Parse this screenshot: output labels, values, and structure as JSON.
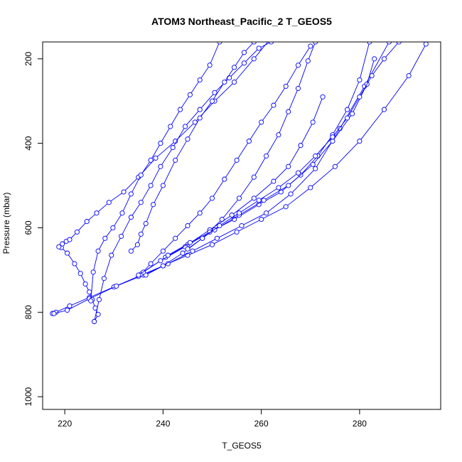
{
  "chart_data": {
    "type": "line",
    "title": "ATOM3 Northeast_Pacific_2 T_GEOS5",
    "xlabel": "T_GEOS5",
    "ylabel": "Pressure (mbar)",
    "xlim": [
      215.5,
      296.5
    ],
    "ylim": [
      1030,
      160
    ],
    "y_reversed": true,
    "x_ticks": [
      220,
      240,
      260,
      280
    ],
    "y_ticks": [
      200,
      400,
      600,
      800,
      1000
    ],
    "grid": false,
    "legend": "none",
    "marker": "open-circle",
    "color": "#0000ff",
    "series": [
      {
        "x": [
          217.5,
          218.2,
          221.0,
          225.0,
          230.0,
          235.0,
          240.0,
          245.0,
          250.0,
          255.0,
          260.0,
          265.0,
          270.0,
          275.0,
          280.0,
          285.0,
          290.0,
          293.5
        ],
        "y": [
          803,
          800,
          785,
          765,
          740,
          715,
          690,
          665,
          640,
          610,
          580,
          550,
          505,
          455,
          395,
          320,
          240,
          165
        ]
      },
      {
        "x": [
          217.8,
          220.5,
          225.0,
          230.5,
          236.0,
          241.0,
          246.0,
          251.0,
          256.0,
          261.0,
          266.0,
          271.0,
          276.0,
          281.0,
          286.0
        ],
        "y": [
          803,
          795,
          768,
          738,
          712,
          685,
          655,
          625,
          595,
          565,
          520,
          460,
          365,
          265,
          160
        ]
      },
      {
        "x": [
          226.0,
          226.8,
          226.2,
          225.6,
          225.0,
          224.2,
          223.2,
          222.0,
          220.5,
          219.3,
          218.8,
          219.5,
          220.3,
          221.0,
          222.5,
          224.5,
          226.5,
          229.0,
          232.0,
          235.0,
          238.5,
          242.5,
          246.5,
          250.5,
          254.5,
          258.5,
          262.0
        ],
        "y": [
          822,
          805,
          790,
          770,
          752,
          733,
          708,
          685,
          660,
          647,
          645,
          638,
          632,
          628,
          610,
          585,
          565,
          540,
          515,
          480,
          435,
          395,
          350,
          300,
          255,
          200,
          150
        ]
      },
      {
        "x": [
          226.0,
          227.0,
          228.0,
          229.5,
          231.5,
          233.5,
          235.5,
          237.5,
          239.5,
          242.0,
          244.5,
          247.5,
          250.5,
          253.5,
          256.5,
          259.5,
          262.0,
          264.5
        ],
        "y": [
          822,
          770,
          720,
          665,
          620,
          575,
          540,
          500,
          455,
          410,
          360,
          320,
          280,
          245,
          210,
          175,
          160,
          150
        ]
      },
      {
        "x": [
          225.3,
          225.8,
          226.8,
          228.2,
          229.8,
          231.7,
          233.5,
          235.5,
          237.5,
          239.5,
          241.5,
          243.5,
          245.5,
          247.5,
          249.5,
          251.5
        ],
        "y": [
          773,
          705,
          655,
          625,
          600,
          565,
          520,
          475,
          440,
          400,
          360,
          320,
          285,
          250,
          215,
          160
        ]
      },
      {
        "x": [
          233.5,
          234.8,
          235.5,
          236.5,
          238.0,
          240.0,
          242.5,
          245.0,
          247.5,
          250.0,
          252.5,
          254.5,
          256.5,
          258.5,
          260.5
        ],
        "y": [
          655,
          640,
          615,
          590,
          545,
          500,
          440,
          390,
          340,
          300,
          255,
          220,
          185,
          160,
          150
        ]
      },
      {
        "x": [
          235.5,
          237.5,
          240.0,
          242.5,
          245.0,
          247.5,
          250.0,
          252.5,
          255.0,
          257.5,
          260.0,
          262.5,
          265.0,
          267.5,
          270.0
        ],
        "y": [
          710,
          685,
          655,
          625,
          595,
          565,
          530,
          485,
          440,
          395,
          350,
          310,
          265,
          215,
          170
        ]
      },
      {
        "x": [
          236.5,
          240.0,
          244.0,
          248.0,
          252.0,
          255.5,
          258.5,
          261.0,
          263.5,
          265.5,
          267.5,
          269.5,
          271.0
        ],
        "y": [
          712,
          690,
          660,
          625,
          580,
          530,
          480,
          430,
          380,
          325,
          270,
          205,
          160
        ]
      },
      {
        "x": [
          236.0,
          240.5,
          245.0,
          249.5,
          254.0,
          258.5,
          262.5,
          265.5,
          268.0,
          270.5,
          272.5
        ],
        "y": [
          705,
          670,
          640,
          605,
          570,
          530,
          490,
          455,
          405,
          350,
          290
        ]
      },
      {
        "x": [
          235.0,
          239.5,
          244.5,
          249.5,
          254.5,
          259.5,
          264.0,
          268.0,
          271.5,
          274.5,
          277.5,
          280.0,
          282.0
        ],
        "y": [
          712,
          678,
          645,
          610,
          580,
          545,
          515,
          475,
          430,
          380,
          320,
          250,
          160
        ]
      },
      {
        "x": [
          241.0,
          245.5,
          250.5,
          255.5,
          260.5,
          265.5,
          270.5,
          274.5,
          278.5,
          281.5,
          283.0
        ],
        "y": [
          665,
          635,
          605,
          570,
          535,
          500,
          450,
          395,
          330,
          260,
          200
        ]
      },
      {
        "x": [
          245.0,
          248.0,
          251.5,
          255.5,
          259.5,
          263.5,
          267.5,
          271.0,
          274.5,
          277.5,
          280.0,
          282.5,
          285.0,
          288.0
        ],
        "y": [
          650,
          625,
          595,
          565,
          535,
          505,
          470,
          430,
          385,
          340,
          290,
          240,
          200,
          160
        ]
      }
    ]
  }
}
